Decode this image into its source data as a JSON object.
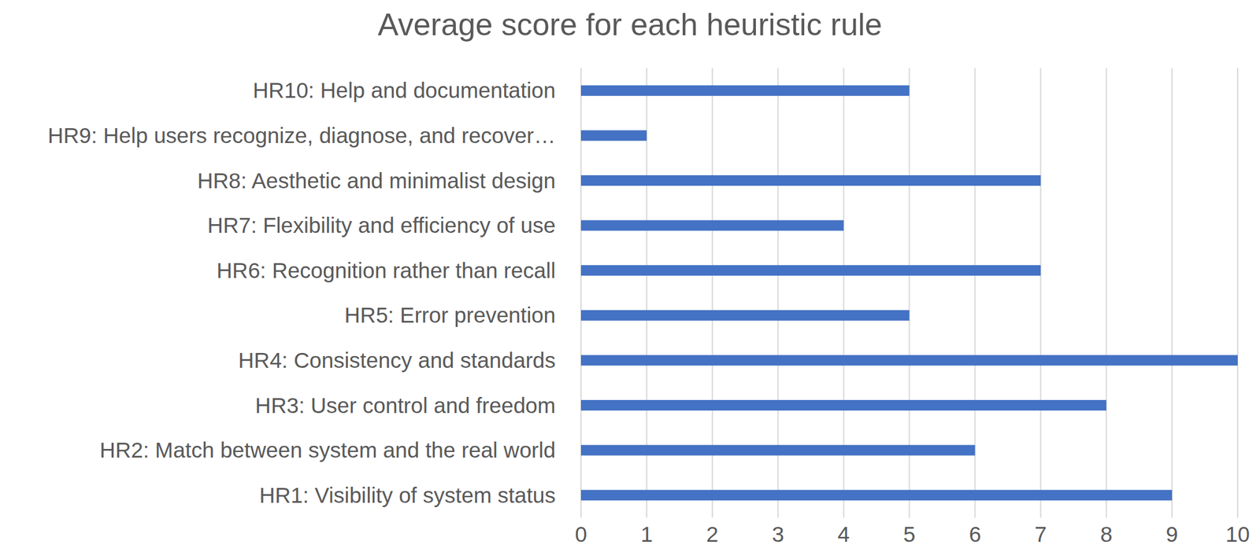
{
  "chart_data": {
    "type": "bar",
    "title": "Average score for each heuristic rule",
    "orientation": "horizontal",
    "categories": [
      "HR1: Visibility of system status",
      "HR2: Match between system and the real world",
      "HR3: User control and freedom",
      "HR4: Consistency and standards",
      "HR5: Error prevention",
      "HR6: Recognition rather than recall",
      "HR7: Flexibility and efficiency of use",
      "HR8: Aesthetic and minimalist design",
      "HR9: Help users recognize, diagnose, and recover…",
      "HR10: Help and documentation"
    ],
    "values": [
      9,
      6,
      8,
      10,
      5,
      7,
      4,
      7,
      1,
      5
    ],
    "color": "#4472c4",
    "xlim": [
      0,
      10
    ],
    "xticks": [
      0,
      1,
      2,
      3,
      4,
      5,
      6,
      7,
      8,
      9,
      10
    ],
    "grid": true
  }
}
